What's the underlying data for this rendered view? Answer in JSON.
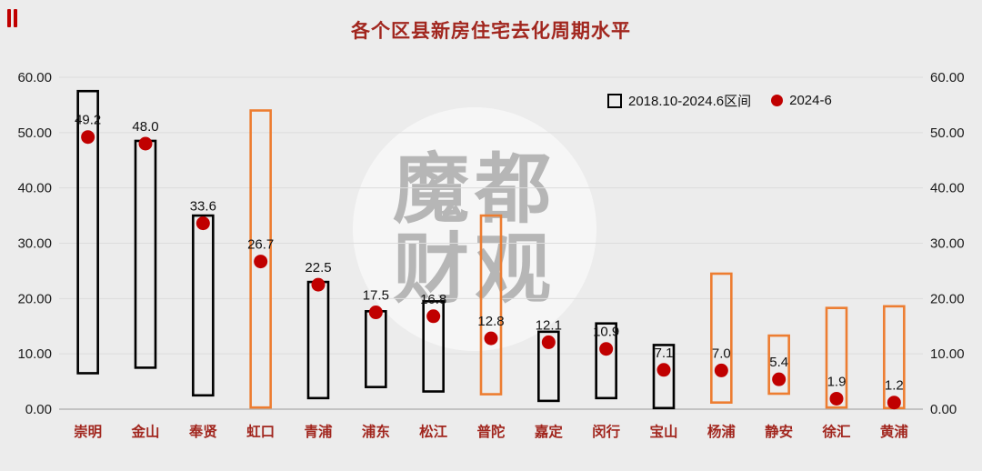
{
  "title": "各个区县新房住宅去化周期水平",
  "legend": {
    "range_label": "2018.10-2024.6区间",
    "dot_label": "2024-6"
  },
  "watermark": {
    "line1": "魔都",
    "line2": "财观"
  },
  "colors": {
    "background": "#ececec",
    "title_text": "#a1261e",
    "xlabel_text": "#a1261e",
    "tick_text": "#1a1a1a",
    "value_label_text": "#111111",
    "grid": "#dcdcdc",
    "axis_line": "#b5b5b5",
    "black_bar": "#000000",
    "orange_bar": "#ED7D31",
    "dot": "#C00000"
  },
  "chart_data": {
    "type": "bar",
    "subtype": "range-bar-with-dots",
    "title": "各个区县新房住宅去化周期水平",
    "categories": [
      "崇明",
      "金山",
      "奉贤",
      "虹口",
      "青浦",
      "浦东",
      "松江",
      "普陀",
      "嘉定",
      "闵行",
      "宝山",
      "杨浦",
      "静安",
      "徐汇",
      "黄浦"
    ],
    "series": [
      {
        "name": "2018.10-2024.6区间",
        "kind": "range",
        "low": [
          6.5,
          7.5,
          2.5,
          0.3,
          2.0,
          4.0,
          3.2,
          2.7,
          1.5,
          2.0,
          0.2,
          1.2,
          2.8,
          0.3,
          0.2
        ],
        "high": [
          57.5,
          48.5,
          35.0,
          54.0,
          23.0,
          17.7,
          19.5,
          35.0,
          14.0,
          15.5,
          11.6,
          24.5,
          13.3,
          18.3,
          18.6
        ],
        "bar_colors": [
          "black",
          "black",
          "black",
          "orange",
          "black",
          "black",
          "black",
          "orange",
          "black",
          "black",
          "black",
          "orange",
          "orange",
          "orange",
          "orange"
        ]
      },
      {
        "name": "2024-6",
        "kind": "dot",
        "values": [
          49.2,
          48.0,
          33.6,
          26.7,
          22.5,
          17.5,
          16.8,
          12.8,
          12.1,
          10.9,
          7.1,
          7.0,
          5.4,
          1.9,
          1.2
        ],
        "labels": [
          "49.2",
          "48.0",
          "33.6",
          "26.7",
          "22.5",
          "17.5",
          "16.8",
          "12.8",
          "12.1",
          "10.9",
          "7.1",
          "7.0",
          "5.4",
          "1.9",
          "1.2"
        ]
      }
    ],
    "ylim": [
      0,
      60
    ],
    "yticks": [
      0,
      10,
      20,
      30,
      40,
      50,
      60
    ],
    "ytick_labels": [
      "0.00",
      "10.00",
      "20.00",
      "30.00",
      "40.00",
      "50.00",
      "60.00"
    ],
    "y_axis_sides": [
      "left",
      "right"
    ],
    "grid": true,
    "legend_position": "top-right"
  }
}
